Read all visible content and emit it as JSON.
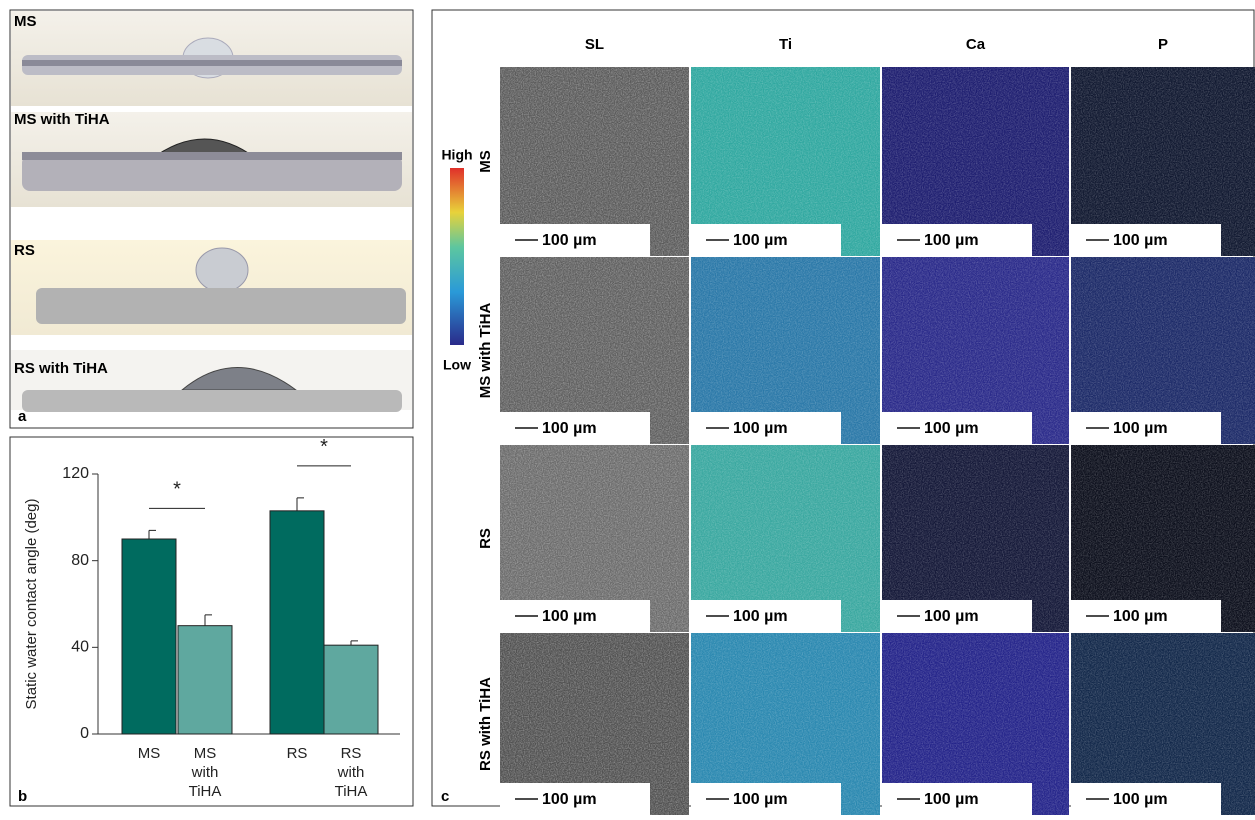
{
  "panel_a": {
    "label": "a",
    "images": [
      "MS",
      "MS with TiHA",
      "RS",
      "RS with TiHA"
    ]
  },
  "chart_data": {
    "type": "bar",
    "panel_label": "b",
    "y_label": "Static water contact angle (deg)",
    "categories": [
      "MS",
      "MS with TiHA",
      "RS",
      "RS with TiHA"
    ],
    "values": [
      90,
      50,
      103,
      41
    ],
    "errors": [
      4,
      5,
      6,
      2
    ],
    "colors": [
      "#006b5f",
      "#5fa89f",
      "#006b5f",
      "#5fa89f"
    ],
    "ylim": [
      0,
      120
    ],
    "yticks": [
      0,
      40,
      80,
      120
    ],
    "annotations": [
      "*",
      "*"
    ]
  },
  "panel_c": {
    "label": "c",
    "columns": [
      "SL",
      "Ti",
      "Ca",
      "P"
    ],
    "rows": [
      "MS",
      "MS with TiHA",
      "RS",
      "RS with TiHA"
    ],
    "scale_bar": "100 µm",
    "colorbar": {
      "high": "High",
      "low": "Low"
    }
  }
}
